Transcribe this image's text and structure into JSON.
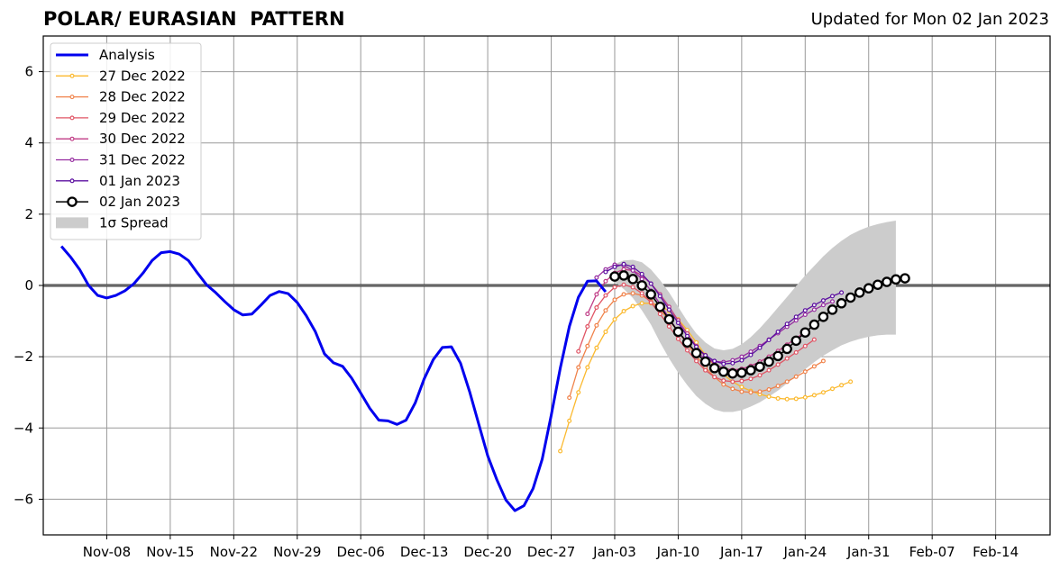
{
  "header": {
    "title": "POLAR/ EURASIAN  PATTERN",
    "updated": "Updated for Mon 02 Jan 2023"
  },
  "chart_data": {
    "type": "line",
    "title": "POLAR/ EURASIAN  PATTERN",
    "xlabel": "",
    "ylabel": "",
    "xlim": [
      "2022-11-01",
      "2023-02-20"
    ],
    "ylim": [
      -7,
      7
    ],
    "y_ticks": [
      6,
      4,
      2,
      0,
      -2,
      -4,
      -6
    ],
    "y_tick_labels": [
      "6",
      "4",
      "2",
      "0",
      "−2",
      "−4",
      "−6"
    ],
    "x_ticks": [
      {
        "date": "2022-11-08",
        "label": "Nov-08"
      },
      {
        "date": "2022-11-15",
        "label": "Nov-15"
      },
      {
        "date": "2022-11-22",
        "label": "Nov-22"
      },
      {
        "date": "2022-11-29",
        "label": "Nov-29"
      },
      {
        "date": "2022-12-06",
        "label": "Dec-06"
      },
      {
        "date": "2022-12-13",
        "label": "Dec-13"
      },
      {
        "date": "2022-12-20",
        "label": "Dec-20"
      },
      {
        "date": "2022-12-27",
        "label": "Dec-27"
      },
      {
        "date": "2023-01-03",
        "label": "Jan-03"
      },
      {
        "date": "2023-01-10",
        "label": "Jan-10"
      },
      {
        "date": "2023-01-17",
        "label": "Jan-17"
      },
      {
        "date": "2023-01-24",
        "label": "Jan-24"
      },
      {
        "date": "2023-01-31",
        "label": "Jan-31"
      },
      {
        "date": "2023-02-07",
        "label": "Feb-07"
      },
      {
        "date": "2023-02-14",
        "label": "Feb-14"
      }
    ],
    "grid": true,
    "zero_line": true,
    "legend_position": "top-left",
    "analysis": {
      "name": "Analysis",
      "color": "#0000ee",
      "start": "2022-11-03",
      "values": [
        1.1,
        0.8,
        0.45,
        0.0,
        -0.28,
        -0.35,
        -0.28,
        -0.15,
        0.05,
        0.35,
        0.7,
        0.92,
        0.95,
        0.88,
        0.7,
        0.35,
        0.02,
        -0.2,
        -0.45,
        -0.68,
        -0.83,
        -0.8,
        -0.55,
        -0.28,
        -0.17,
        -0.23,
        -0.48,
        -0.85,
        -1.3,
        -1.92,
        -2.17,
        -2.27,
        -2.6,
        -3.02,
        -3.45,
        -3.78,
        -3.8,
        -3.9,
        -3.78,
        -3.3,
        -2.62,
        -2.08,
        -1.74,
        -1.72,
        -2.18,
        -2.98,
        -3.88,
        -4.78,
        -5.45,
        -6.02,
        -6.32,
        -6.18,
        -5.7,
        -4.88,
        -3.65,
        -2.32,
        -1.15,
        -0.33,
        0.12,
        0.13,
        -0.18
      ]
    },
    "forecasts": [
      {
        "name": "27 Dec 2022",
        "color": "#fbb92e",
        "start": "2022-12-28",
        "values": [
          -4.65,
          -3.8,
          -3.0,
          -2.3,
          -1.75,
          -1.3,
          -0.95,
          -0.72,
          -0.58,
          -0.5,
          -0.5,
          -0.56,
          -0.72,
          -0.95,
          -1.25,
          -1.6,
          -1.95,
          -2.25,
          -2.5,
          -2.7,
          -2.85,
          -2.96,
          -3.05,
          -3.12,
          -3.17,
          -3.19,
          -3.18,
          -3.14,
          -3.08,
          -3.0,
          -2.9,
          -2.8,
          -2.7
        ]
      },
      {
        "name": "28 Dec 2022",
        "color": "#f0824a",
        "start": "2022-12-29",
        "values": [
          -3.15,
          -2.3,
          -1.7,
          -1.12,
          -0.7,
          -0.4,
          -0.25,
          -0.22,
          -0.28,
          -0.45,
          -0.68,
          -0.98,
          -1.3,
          -1.65,
          -1.98,
          -2.3,
          -2.57,
          -2.78,
          -2.9,
          -2.98,
          -3.0,
          -2.98,
          -2.92,
          -2.82,
          -2.7,
          -2.56,
          -2.42,
          -2.27,
          -2.12
        ]
      },
      {
        "name": "29 Dec 2022",
        "color": "#e05565",
        "start": "2022-12-30",
        "values": [
          -1.85,
          -1.15,
          -0.62,
          -0.28,
          -0.05,
          0.02,
          -0.05,
          -0.22,
          -0.48,
          -0.8,
          -1.15,
          -1.5,
          -1.82,
          -2.12,
          -2.38,
          -2.57,
          -2.67,
          -2.7,
          -2.68,
          -2.62,
          -2.52,
          -2.38,
          -2.22,
          -2.05,
          -1.88,
          -1.7,
          -1.52
        ]
      },
      {
        "name": "30 Dec 2022",
        "color": "#c03c86",
        "start": "2022-12-31",
        "values": [
          -0.8,
          -0.25,
          0.12,
          0.35,
          0.45,
          0.42,
          0.28,
          0.05,
          -0.25,
          -0.6,
          -0.98,
          -1.35,
          -1.7,
          -2.0,
          -2.2,
          -2.33,
          -2.37,
          -2.34,
          -2.26,
          -2.14,
          -2.0,
          -1.84,
          -1.66,
          -1.48,
          -1.3,
          -1.13
        ]
      },
      {
        "name": "31 Dec 2022",
        "color": "#962ca0",
        "start": "2023-01-01",
        "values": [
          0.22,
          0.45,
          0.58,
          0.56,
          0.42,
          0.18,
          -0.15,
          -0.52,
          -0.92,
          -1.3,
          -1.62,
          -1.88,
          -2.05,
          -2.13,
          -2.15,
          -2.1,
          -2.0,
          -1.86,
          -1.7,
          -1.52,
          -1.34,
          -1.16,
          -0.98,
          -0.82,
          -0.68,
          -0.55,
          -0.45
        ]
      },
      {
        "name": "01 Jan 2023",
        "color": "#5c10a0",
        "start": "2023-01-02",
        "values": [
          0.38,
          0.52,
          0.6,
          0.52,
          0.32,
          0.05,
          -0.3,
          -0.68,
          -1.05,
          -1.42,
          -1.72,
          -1.96,
          -2.12,
          -2.2,
          -2.18,
          -2.1,
          -1.95,
          -1.75,
          -1.53,
          -1.3,
          -1.08,
          -0.88,
          -0.7,
          -0.55,
          -0.42,
          -0.3,
          -0.2
        ]
      }
    ],
    "latest": {
      "name": "02 Jan 2023",
      "color": "#000000",
      "start": "2023-01-03",
      "values": [
        0.25,
        0.28,
        0.18,
        0.0,
        -0.25,
        -0.6,
        -0.95,
        -1.3,
        -1.6,
        -1.9,
        -2.14,
        -2.32,
        -2.42,
        -2.47,
        -2.45,
        -2.38,
        -2.28,
        -2.14,
        -1.98,
        -1.78,
        -1.55,
        -1.32,
        -1.1,
        -0.88,
        -0.68,
        -0.5,
        -0.34,
        -0.2,
        -0.08,
        0.02,
        0.1,
        0.17,
        0.2
      ]
    },
    "spread": {
      "name": "1σ Spread",
      "color": "#cccccc",
      "start": "2023-01-03",
      "upper": [
        0.6,
        0.7,
        0.72,
        0.65,
        0.45,
        0.15,
        -0.2,
        -0.6,
        -1.0,
        -1.35,
        -1.6,
        -1.77,
        -1.82,
        -1.78,
        -1.65,
        -1.45,
        -1.2,
        -0.92,
        -0.62,
        -0.32,
        -0.02,
        0.28,
        0.55,
        0.82,
        1.05,
        1.25,
        1.42,
        1.55,
        1.65,
        1.72,
        1.78,
        1.82
      ],
      "lower": [
        0.1,
        -0.1,
        -0.35,
        -0.7,
        -1.1,
        -1.6,
        -2.05,
        -2.45,
        -2.8,
        -3.1,
        -3.32,
        -3.48,
        -3.55,
        -3.55,
        -3.5,
        -3.4,
        -3.28,
        -3.12,
        -2.95,
        -2.75,
        -2.55,
        -2.35,
        -2.15,
        -1.97,
        -1.82,
        -1.68,
        -1.58,
        -1.5,
        -1.44,
        -1.4,
        -1.38,
        -1.38
      ]
    }
  }
}
